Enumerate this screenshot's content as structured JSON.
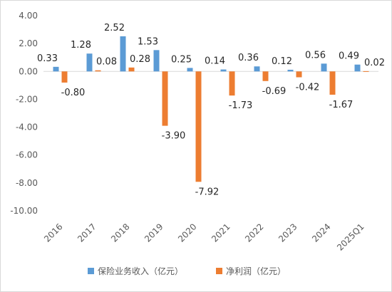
{
  "chart_data": {
    "type": "bar",
    "categories": [
      "2016",
      "2017",
      "2018",
      "2019",
      "2020",
      "2021",
      "2022",
      "2023",
      "2024",
      "2025Q1"
    ],
    "series": [
      {
        "name": "保险业务收入（亿元）",
        "color": "#5b9bd5",
        "values": [
          0.33,
          1.28,
          2.52,
          1.53,
          0.25,
          0.14,
          0.36,
          0.12,
          0.56,
          0.49
        ],
        "labels": [
          "0.33",
          "1.28",
          "2.52",
          "1.53",
          "0.25",
          "0.14",
          "0.36",
          "0.12",
          "0.56",
          "0.49"
        ]
      },
      {
        "name": "净利润（亿元）",
        "color": "#ed7d31",
        "values": [
          -0.8,
          0.08,
          0.28,
          -3.9,
          -7.92,
          -1.73,
          -0.69,
          -0.42,
          -1.67,
          0.02
        ],
        "labels": [
          "-0.80",
          "0.08",
          "0.28",
          "-3.90",
          "-7.92",
          "-1.73",
          "-0.69",
          "-0.42",
          "-1.67",
          "0.02"
        ]
      }
    ],
    "ylim": [
      -10,
      4
    ],
    "yticks": [
      "4.00",
      "2.00",
      "0.00",
      "-2.00",
      "-4.00",
      "-6.00",
      "-8.00",
      "-10.00"
    ],
    "ytick_values": [
      4,
      2,
      0,
      -2,
      -4,
      -6,
      -8,
      -10
    ],
    "legend_position": "bottom",
    "grid": false
  }
}
